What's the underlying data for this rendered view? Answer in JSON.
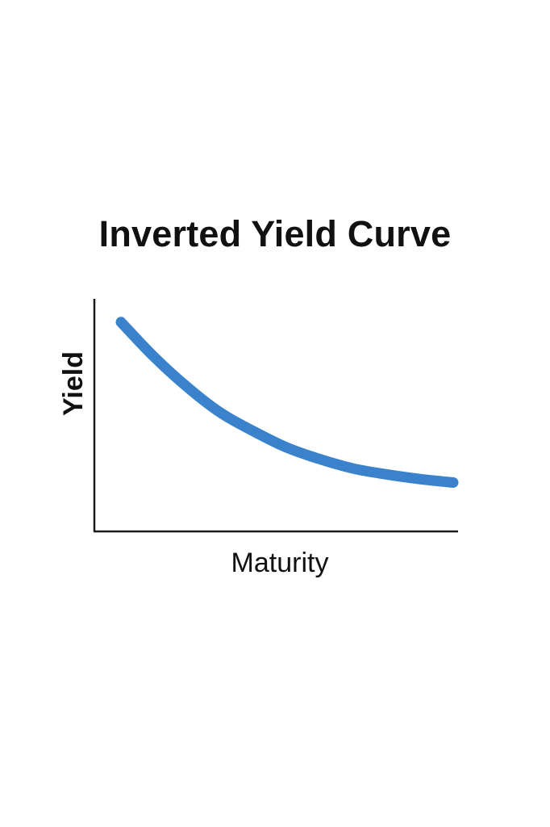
{
  "chart_data": {
    "type": "line",
    "title": "Inverted Yield Curve",
    "xlabel": "Maturity",
    "ylabel": "Yield",
    "grid": false,
    "ticks": false,
    "series": [
      {
        "color": "#3a83cc",
        "x": [
          0.0,
          0.1,
          0.2,
          0.3,
          0.4,
          0.5,
          0.6,
          0.7,
          0.8,
          0.9,
          1.0
        ],
        "y": [
          0.9,
          0.75,
          0.62,
          0.51,
          0.43,
          0.36,
          0.31,
          0.27,
          0.245,
          0.225,
          0.21
        ]
      }
    ],
    "xlim": [
      -0.08,
      1.0
    ],
    "ylim": [
      0.0,
      1.0
    ]
  }
}
